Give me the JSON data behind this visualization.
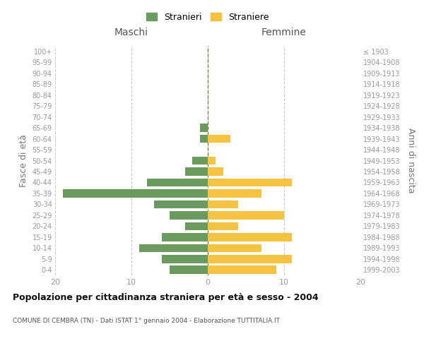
{
  "age_groups": [
    "0-4",
    "5-9",
    "10-14",
    "15-19",
    "20-24",
    "25-29",
    "30-34",
    "35-39",
    "40-44",
    "45-49",
    "50-54",
    "55-59",
    "60-64",
    "65-69",
    "70-74",
    "75-79",
    "80-84",
    "85-89",
    "90-94",
    "95-99",
    "100+"
  ],
  "birth_years": [
    "1999-2003",
    "1994-1998",
    "1989-1993",
    "1984-1988",
    "1979-1983",
    "1974-1978",
    "1969-1973",
    "1964-1968",
    "1959-1963",
    "1954-1958",
    "1949-1953",
    "1944-1948",
    "1939-1943",
    "1934-1938",
    "1929-1933",
    "1924-1928",
    "1919-1923",
    "1914-1918",
    "1909-1913",
    "1904-1908",
    "≤ 1903"
  ],
  "maschi": [
    5,
    6,
    9,
    6,
    3,
    5,
    7,
    19,
    8,
    3,
    2,
    0,
    1,
    1,
    0,
    0,
    0,
    0,
    0,
    0,
    0
  ],
  "femmine": [
    9,
    11,
    7,
    11,
    4,
    10,
    4,
    7,
    11,
    2,
    1,
    0,
    3,
    0,
    0,
    0,
    0,
    0,
    0,
    0,
    0
  ],
  "maschi_color": "#6a9a5e",
  "femmine_color": "#f5c242",
  "title": "Popolazione per cittadinanza straniera per età e sesso - 2004",
  "subtitle": "COMUNE DI CEMBRA (TN) - Dati ISTAT 1° gennaio 2004 - Elaborazione TUTTITALIA.IT",
  "xlabel_left": "Maschi",
  "xlabel_right": "Femmine",
  "ylabel_left": "Fasce di età",
  "ylabel_right": "Anni di nascita",
  "legend_stranieri": "Stranieri",
  "legend_straniere": "Straniere",
  "xlim": 20,
  "bg_color": "#ffffff",
  "grid_color": "#cccccc"
}
